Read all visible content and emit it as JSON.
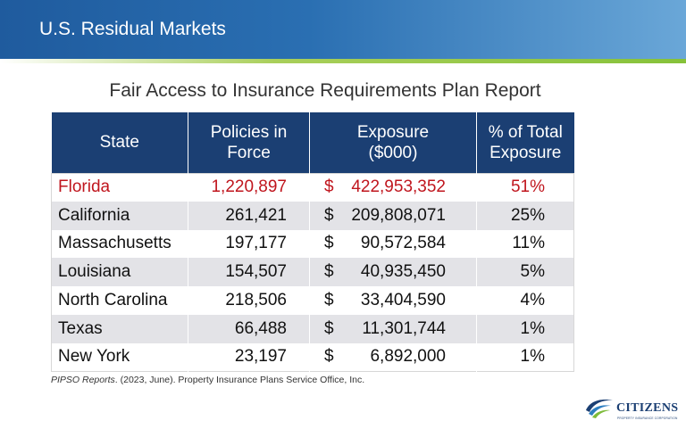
{
  "header": {
    "title": "U.S. Residual Markets"
  },
  "report": {
    "title": "Fair Access to Insurance Requirements Plan Report",
    "columns": {
      "state": "State",
      "policies_line1": "Policies in",
      "policies_line2": "Force",
      "exposure_line1": "Exposure",
      "exposure_line2": "($000)",
      "pct_line1": "% of Total",
      "pct_line2": "Exposure"
    },
    "rows": [
      {
        "state": "Florida",
        "policies": "1,220,897",
        "currency": "$",
        "exposure": "422,953,352",
        "pct": "51%"
      },
      {
        "state": "California",
        "policies": "261,421",
        "currency": "$",
        "exposure": "209,808,071",
        "pct": "25%"
      },
      {
        "state": "Massachusetts",
        "policies": "197,177",
        "currency": "$",
        "exposure": "90,572,584",
        "pct": "11%"
      },
      {
        "state": "Louisiana",
        "policies": "154,507",
        "currency": "$",
        "exposure": "40,935,450",
        "pct": "5%"
      },
      {
        "state": "North Carolina",
        "policies": "218,506",
        "currency": "$",
        "exposure": "33,404,590",
        "pct": "4%"
      },
      {
        "state": "Texas",
        "policies": "66,488",
        "currency": "$",
        "exposure": "11,301,744",
        "pct": "1%"
      },
      {
        "state": "New York",
        "policies": "23,197",
        "currency": "$",
        "exposure": "6,892,000",
        "pct": "1%"
      }
    ],
    "highlight_color": "#c0161e",
    "header_color": "#1b3f73"
  },
  "citation": {
    "source": "PIPSO Reports",
    "rest": ". (2023, June). Property Insurance Plans Service Office, Inc."
  },
  "logo": {
    "name": "CITIZENS",
    "tagline": "PROPERTY INSURANCE CORPORATION",
    "icon": "citizens-swoosh-icon"
  }
}
